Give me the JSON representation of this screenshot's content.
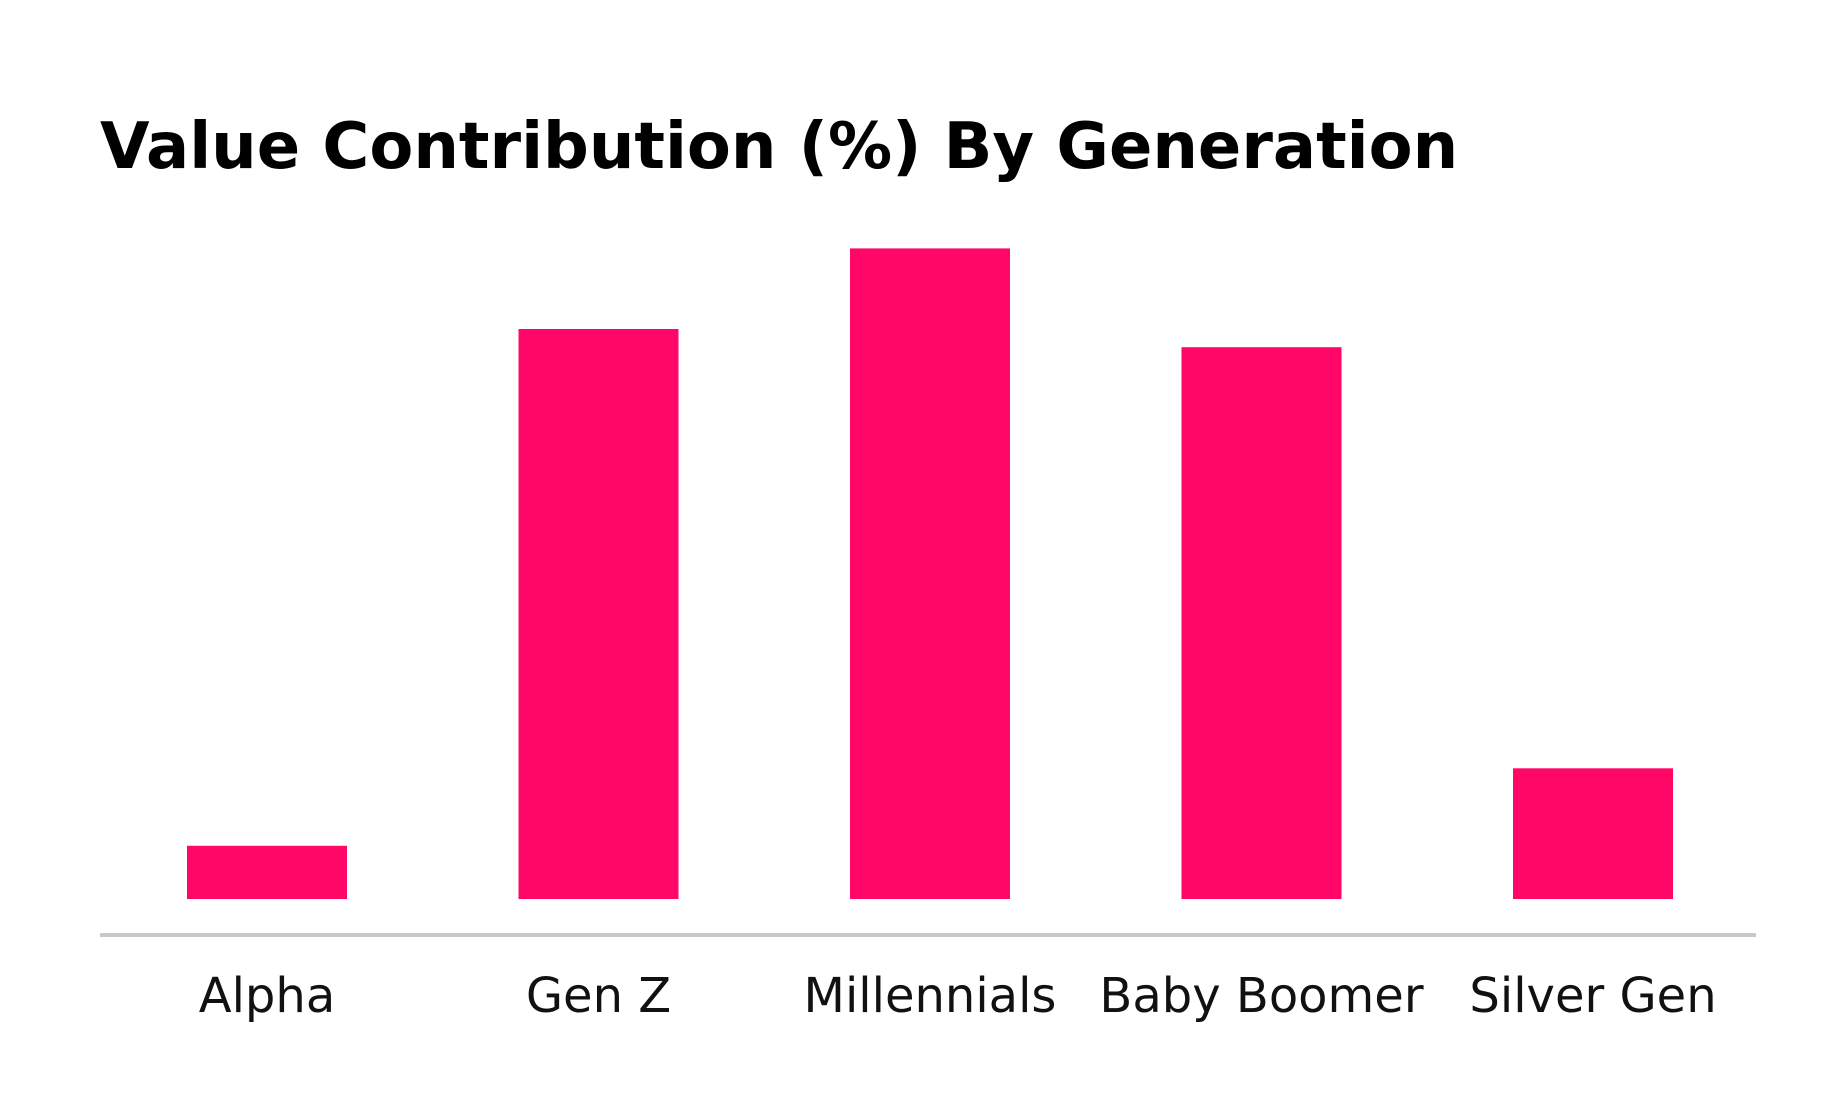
{
  "colors": {
    "bar": "#FF0766",
    "axis": "#C8C8C8",
    "background": "#FFFFFF"
  },
  "chart_data": {
    "type": "bar",
    "title": "Value Contribution (%) By Generation",
    "xlabel": "",
    "ylabel": "",
    "categories": [
      "Alpha",
      "Gen Z",
      "Millennials",
      "Baby Boomer",
      "Silver Gen"
    ],
    "values": [
      3.5,
      37.5,
      42.8,
      36.3,
      8.6
    ],
    "ylim": [
      0,
      45
    ],
    "grid": false,
    "legend": "none"
  }
}
